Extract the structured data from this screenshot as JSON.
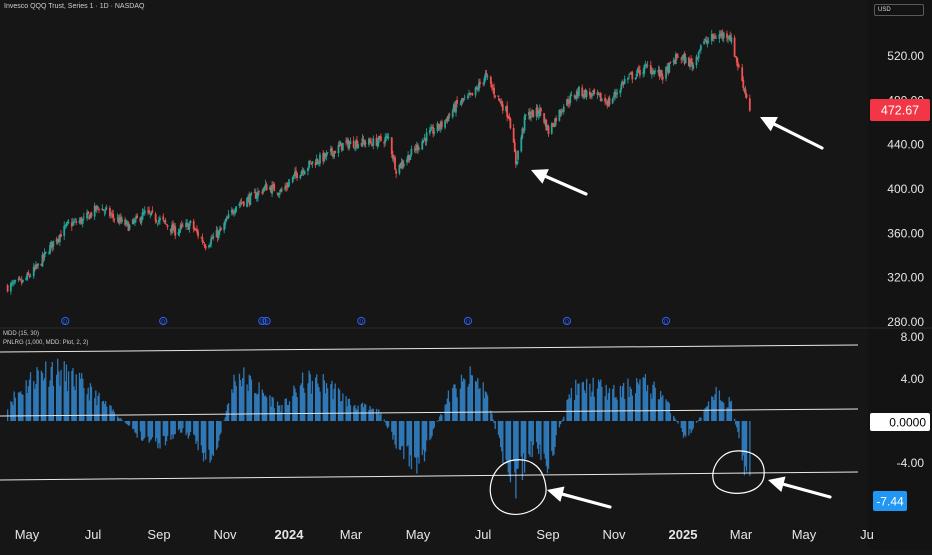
{
  "header": {
    "title": "Invesco QQQ Trust, Series 1 · 1D · NASDAQ",
    "currency": "USD"
  },
  "indicator": {
    "line1": "MDD (15, 30)",
    "line2": "PNLRG (1,000, MDD: Plot, 2, 2)"
  },
  "price_badge": {
    "value": "472.67",
    "color": "#f23645"
  },
  "indicator_badges": [
    {
      "value": "0.0000",
      "bg": "#ffffff",
      "fg": "#000000"
    },
    {
      "value": "-7.44",
      "bg": "#2196f3",
      "fg": "#ffffff"
    }
  ],
  "colors": {
    "up": "#26a69a",
    "down": "#ef5350",
    "hist": "#2f79b8",
    "background": "#161616"
  },
  "chart_data": [
    {
      "type": "candlestick",
      "title": "Invesco QQQ Trust, Series 1 · 1D · NASDAQ",
      "ylim": [
        280,
        560
      ],
      "y_ticks": [
        "520.00",
        "480.00",
        "440.00",
        "400.00",
        "360.00",
        "320.00",
        "280.00"
      ],
      "last_price": 472.67,
      "series": [
        {
          "x": [
            "2023-04-28",
            "2023-05-12",
            "2023-05-26",
            "2023-06-09",
            "2023-06-23",
            "2023-07-07",
            "2023-07-21",
            "2023-08-04",
            "2023-08-18",
            "2023-09-01",
            "2023-09-15",
            "2023-09-29",
            "2023-10-13",
            "2023-10-27",
            "2023-11-10",
            "2023-11-24",
            "2023-12-08",
            "2023-12-22",
            "2024-01-05",
            "2024-01-19",
            "2024-02-02",
            "2024-02-16",
            "2024-03-01",
            "2024-03-15",
            "2024-03-29",
            "2024-04-12",
            "2024-04-19",
            "2024-05-03",
            "2024-05-17",
            "2024-05-31",
            "2024-06-14",
            "2024-06-28",
            "2024-07-10",
            "2024-07-19",
            "2024-08-01",
            "2024-08-07",
            "2024-08-16",
            "2024-08-30",
            "2024-09-06",
            "2024-09-20",
            "2024-10-04",
            "2024-10-18",
            "2024-11-01",
            "2024-11-15",
            "2024-11-29",
            "2024-12-06",
            "2024-12-20",
            "2025-01-03",
            "2025-01-17",
            "2025-01-24",
            "2025-02-07",
            "2025-02-19",
            "2025-03-03",
            "2025-03-10"
          ],
          "y": [
            312,
            316,
            330,
            352,
            368,
            372,
            384,
            374,
            366,
            378,
            372,
            362,
            368,
            350,
            362,
            386,
            392,
            402,
            398,
            414,
            424,
            430,
            440,
            442,
            442,
            446,
            418,
            432,
            448,
            458,
            476,
            484,
            502,
            486,
            466,
            424,
            466,
            470,
            452,
            476,
            488,
            484,
            478,
            498,
            506,
            510,
            502,
            520,
            512,
            530,
            538,
            540,
            498,
            472.67
          ]
        }
      ]
    },
    {
      "type": "bar",
      "title": "MDD (15, 30)",
      "ylim": [
        -8,
        8
      ],
      "y_ticks": [
        "8.00",
        "4.00",
        "0.0000",
        "-4.00",
        "-7.44"
      ],
      "last_value": -7.44,
      "series": [
        {
          "x": [
            "2023-04-28",
            "2023-05-26",
            "2023-06-09",
            "2023-07-07",
            "2023-08-04",
            "2023-08-25",
            "2023-09-15",
            "2023-10-06",
            "2023-10-20",
            "2023-11-03",
            "2023-11-24",
            "2023-12-15",
            "2024-01-05",
            "2024-01-26",
            "2024-02-16",
            "2024-03-08",
            "2024-04-05",
            "2024-04-19",
            "2024-05-10",
            "2024-06-07",
            "2024-06-28",
            "2024-07-10",
            "2024-07-26",
            "2024-08-07",
            "2024-08-23",
            "2024-09-06",
            "2024-09-27",
            "2024-10-18",
            "2024-11-08",
            "2024-11-29",
            "2024-12-20",
            "2025-01-10",
            "2025-02-07",
            "2025-02-21",
            "2025-03-03",
            "2025-03-10"
          ],
          "values": [
            2.0,
            5.5,
            6.0,
            4.0,
            1.0,
            -1.5,
            -2.5,
            -1.0,
            -2.8,
            -4.8,
            5.5,
            3.5,
            1.5,
            4.5,
            4.2,
            2.0,
            1.0,
            -3.0,
            -5.0,
            3.0,
            5.0,
            3.5,
            -4.0,
            -7.0,
            -3.0,
            -5.0,
            3.5,
            4.0,
            3.0,
            4.5,
            3.0,
            -2.0,
            3.0,
            2.0,
            -4.0,
            -7.44
          ]
        }
      ]
    }
  ],
  "time_axis": [
    "May",
    "Jul",
    "Sep",
    "Nov",
    "2024",
    "Mar",
    "May",
    "Jul",
    "Sep",
    "Nov",
    "2025",
    "Mar",
    "May",
    "Ju"
  ]
}
